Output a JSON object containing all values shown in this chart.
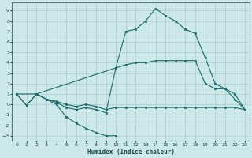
{
  "xlabel": "Humidex (Indice chaleur)",
  "bg_color": "#cce8e8",
  "grid_color": "#b0d0d0",
  "line_color": "#1a6b6b",
  "xlim": [
    -0.5,
    23.5
  ],
  "ylim": [
    -3.5,
    9.8
  ],
  "xticks": [
    0,
    1,
    2,
    3,
    4,
    5,
    6,
    7,
    8,
    9,
    10,
    11,
    12,
    13,
    14,
    15,
    16,
    17,
    18,
    19,
    20,
    21,
    22,
    23
  ],
  "yticks": [
    -3,
    -2,
    -1,
    0,
    1,
    2,
    3,
    4,
    5,
    6,
    7,
    8,
    9
  ],
  "curve_bottom": {
    "x": [
      0,
      1,
      2,
      3,
      4,
      5,
      6,
      7,
      8,
      9,
      10
    ],
    "y": [
      1.0,
      -0.1,
      1.0,
      0.5,
      0.0,
      -1.2,
      -1.8,
      -2.3,
      -2.7,
      -3.0,
      -3.0
    ]
  },
  "curve_middle_low": {
    "x": [
      0,
      1,
      2,
      3,
      4,
      5,
      6,
      7,
      8,
      9,
      10,
      11,
      12,
      13,
      14,
      15,
      16,
      17,
      18,
      19,
      20,
      21,
      22,
      23
    ],
    "y": [
      1.0,
      -0.1,
      1.0,
      0.5,
      0.3,
      0.0,
      -0.2,
      0.0,
      -0.2,
      -0.5,
      -0.3,
      -0.3,
      -0.3,
      -0.3,
      -0.3,
      -0.3,
      -0.3,
      -0.3,
      -0.3,
      -0.3,
      -0.3,
      -0.3,
      -0.3,
      -0.5
    ]
  },
  "curve_middle_high": {
    "x": [
      0,
      2,
      10,
      11,
      12,
      13,
      14,
      15,
      16,
      17,
      18,
      19,
      20,
      21,
      22,
      23
    ],
    "y": [
      1.0,
      1.0,
      3.5,
      3.8,
      4.0,
      4.0,
      4.2,
      4.2,
      4.2,
      4.2,
      4.2,
      2.0,
      1.5,
      1.5,
      0.5,
      -0.5
    ]
  },
  "curve_top": {
    "x": [
      2,
      3,
      4,
      5,
      6,
      7,
      8,
      9,
      10,
      11,
      12,
      13,
      14,
      15,
      16,
      17,
      18,
      19,
      20,
      21,
      22,
      23
    ],
    "y": [
      1.0,
      0.5,
      0.2,
      -0.3,
      -0.5,
      -0.3,
      -0.5,
      -0.8,
      3.5,
      7.0,
      7.2,
      8.0,
      9.2,
      8.5,
      8.0,
      7.2,
      6.8,
      4.5,
      2.0,
      1.5,
      1.0,
      -0.5
    ]
  }
}
